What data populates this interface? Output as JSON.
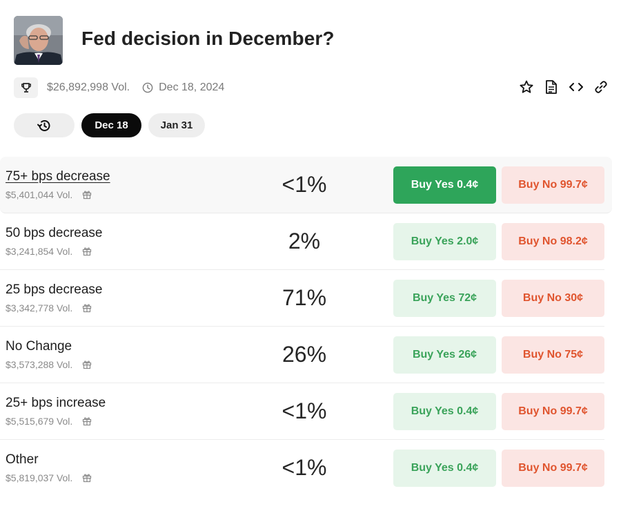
{
  "market": {
    "title": "Fed decision in December?",
    "volume": "$26,892,998 Vol.",
    "end_date": "Dec 18, 2024",
    "icons": {
      "trophy": "trophy-icon",
      "clock": "clock-icon",
      "star": "star-icon",
      "document": "document-icon",
      "embed": "code-icon",
      "link": "link-icon"
    }
  },
  "tabs": [
    {
      "label": "",
      "icon": "history-icon"
    },
    {
      "label": "Dec 18",
      "active": true
    },
    {
      "label": "Jan 31"
    }
  ],
  "colors": {
    "yes_text": "#3aa35a",
    "yes_bg": "#e6f5ea",
    "yes_solid": "#2ea55a",
    "no_text": "#e0552f",
    "no_bg": "#fbe5e3"
  },
  "outcomes": [
    {
      "name": "75+ bps decrease",
      "volume": "$5,401,044 Vol.",
      "probability": "<1%",
      "yes": "Buy Yes 0.4¢",
      "no": "Buy No 99.7¢"
    },
    {
      "name": "50 bps decrease",
      "volume": "$3,241,854 Vol.",
      "probability": "2%",
      "yes": "Buy Yes 2.0¢",
      "no": "Buy No 98.2¢"
    },
    {
      "name": "25 bps decrease",
      "volume": "$3,342,778 Vol.",
      "probability": "71%",
      "yes": "Buy Yes 72¢",
      "no": "Buy No 30¢"
    },
    {
      "name": "No Change",
      "volume": "$3,573,288 Vol.",
      "probability": "26%",
      "yes": "Buy Yes 26¢",
      "no": "Buy No 75¢"
    },
    {
      "name": "25+ bps increase",
      "volume": "$5,515,679 Vol.",
      "probability": "<1%",
      "yes": "Buy Yes 0.4¢",
      "no": "Buy No 99.7¢"
    },
    {
      "name": "Other",
      "volume": "$5,819,037 Vol.",
      "probability": "<1%",
      "yes": "Buy Yes 0.4¢",
      "no": "Buy No 99.7¢"
    }
  ]
}
